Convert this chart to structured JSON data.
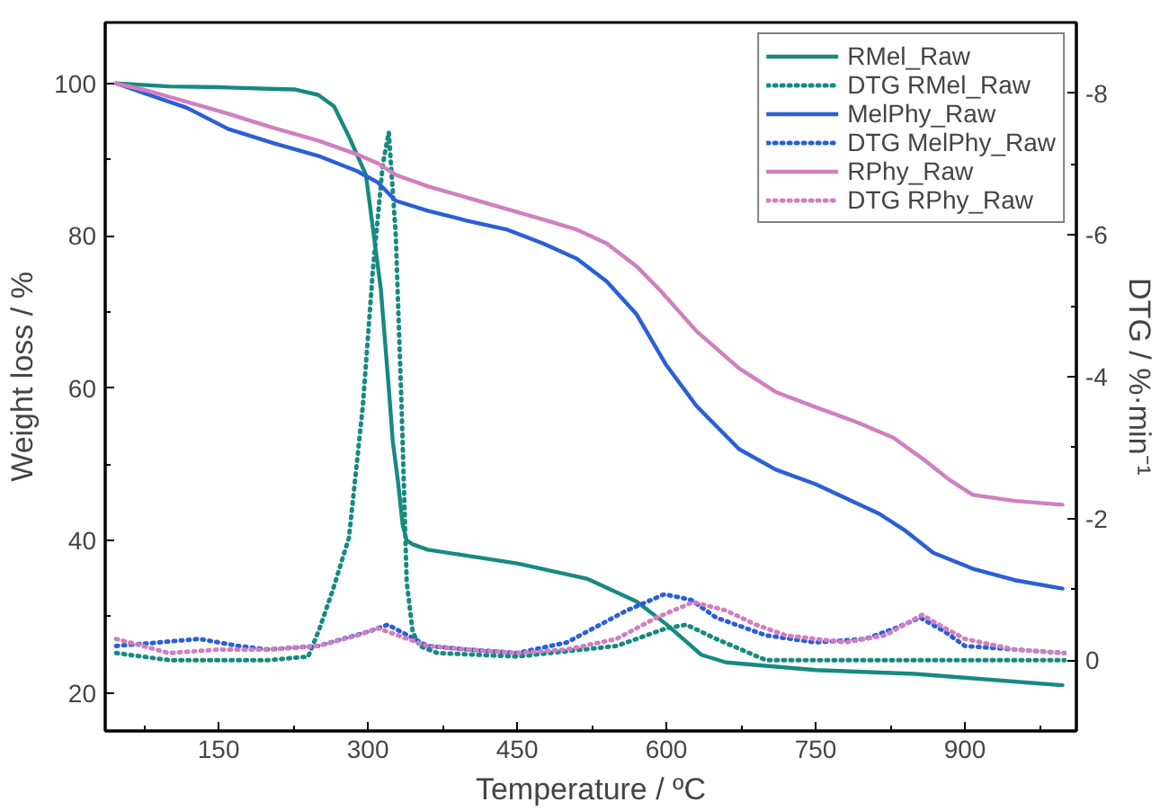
{
  "chart_data": {
    "type": "line",
    "xlabel": "Temperature / ºC",
    "ylabel": "Weight loss / %",
    "y2label": "DTG / %·min⁻¹",
    "xlim": [
      36,
      1012
    ],
    "ylim": [
      15,
      108
    ],
    "y2lim": [
      1,
      -9
    ],
    "xticks": [
      {
        "value": 75,
        "label": null
      },
      150,
      {
        "value": 225,
        "label": null
      },
      300,
      {
        "value": 375,
        "label": null
      },
      450,
      {
        "value": 525,
        "label": null
      },
      600,
      {
        "value": 675,
        "label": null
      },
      750,
      {
        "value": 825,
        "label": null
      },
      900,
      {
        "value": 975,
        "label": null
      }
    ],
    "yticks": [
      20,
      {
        "value": 30,
        "label": null
      },
      40,
      {
        "value": 50,
        "label": null
      },
      60,
      {
        "value": 70,
        "label": null
      },
      80,
      {
        "value": 90,
        "label": null
      },
      100
    ],
    "y2ticks": [
      0,
      {
        "value": -1,
        "label": null
      },
      -2,
      {
        "value": -3,
        "label": null
      },
      -4,
      {
        "value": -5,
        "label": null
      },
      -6,
      {
        "value": -7,
        "label": null
      },
      -8
    ],
    "grid": false,
    "legend": "top right",
    "marker": "none",
    "series": [
      {
        "name": "RMel_Raw",
        "color": "#178a80",
        "line_style": "solid",
        "x": [
          47,
          100,
          150,
          200,
          227,
          250,
          266,
          281,
          298,
          313,
          321,
          325,
          330,
          335,
          339,
          345,
          360,
          400,
          450,
          520,
          570,
          600,
          635,
          660,
          750,
          850,
          998
        ],
        "values": [
          100,
          99.6,
          99.5,
          99.3,
          99.2,
          98.5,
          97,
          93,
          88,
          73,
          60,
          53,
          48,
          42,
          40,
          39.5,
          38.8,
          38,
          37,
          35,
          32,
          29,
          25,
          24,
          23,
          22.5,
          21
        ]
      },
      {
        "name": "DTG RMel_Raw",
        "color": "#178a80",
        "line_style": "dotted",
        "axis": "y2",
        "x": [
          47,
          100,
          150,
          200,
          240,
          251,
          265,
          281,
          295,
          305,
          315,
          321,
          328,
          334,
          339,
          345,
          352,
          370,
          450,
          550,
          600,
          620,
          650,
          700,
          800,
          900,
          1000
        ],
        "values": [
          -0.1,
          0,
          0,
          0,
          -0.05,
          -0.43,
          -1,
          -1.73,
          -3.6,
          -5.5,
          -7,
          -7.45,
          -6,
          -3.5,
          -1.1,
          -0.4,
          -0.2,
          -0.1,
          -0.05,
          -0.2,
          -0.45,
          -0.5,
          -0.3,
          0,
          0,
          0,
          0
        ]
      },
      {
        "name": "MelPhy_Raw",
        "color": "#2a5fd6",
        "line_style": "solid",
        "x": [
          47,
          80,
          118,
          160,
          204,
          250,
          289,
          310,
          328,
          360,
          399,
          440,
          476,
          510,
          540,
          570,
          600,
          630,
          673,
          710,
          750,
          814,
          840,
          868,
          908,
          950,
          998
        ],
        "values": [
          100,
          98.5,
          96.8,
          94,
          92.2,
          90.5,
          88.5,
          87,
          84.6,
          83.3,
          82,
          80.8,
          79,
          77,
          74,
          69.7,
          63,
          57.7,
          52,
          49.3,
          47.4,
          43.5,
          41.3,
          38.4,
          36.3,
          34.8,
          33.7
        ]
      },
      {
        "name": "DTG MelPhy_Raw",
        "color": "#2a5fd6",
        "line_style": "dotted",
        "axis": "y2",
        "x": [
          47,
          90,
          130,
          170,
          200,
          250,
          300,
          320,
          340,
          360,
          400,
          450,
          500,
          520,
          560,
          598,
          625,
          650,
          700,
          750,
          800,
          830,
          855,
          880,
          900,
          950,
          1000
        ],
        "values": [
          -0.2,
          -0.25,
          -0.3,
          -0.2,
          -0.15,
          -0.2,
          -0.4,
          -0.5,
          -0.35,
          -0.2,
          -0.15,
          -0.1,
          -0.25,
          -0.4,
          -0.7,
          -0.93,
          -0.85,
          -0.6,
          -0.35,
          -0.25,
          -0.3,
          -0.45,
          -0.6,
          -0.4,
          -0.2,
          -0.15,
          -0.1
        ]
      },
      {
        "name": "RPhy_Raw",
        "color": "#d07fbf",
        "line_style": "solid",
        "x": [
          47,
          80,
          120,
          160,
          204,
          250,
          289,
          310,
          328,
          360,
          400,
          440,
          480,
          510,
          540,
          570,
          594,
          630,
          673,
          710,
          750,
          790,
          828,
          860,
          884,
          908,
          950,
          998
        ],
        "values": [
          100,
          99,
          97.5,
          96,
          94.2,
          92.5,
          90.7,
          89.5,
          88,
          86.5,
          85,
          83.5,
          82,
          80.8,
          79,
          76,
          72.8,
          67.5,
          62.6,
          59.5,
          57.5,
          55.6,
          53.5,
          50.5,
          48,
          46,
          45.2,
          44.7
        ]
      },
      {
        "name": "DTG RPhy_Raw",
        "color": "#d07fbf",
        "line_style": "dotted",
        "axis": "y2",
        "x": [
          47,
          100,
          150,
          200,
          250,
          290,
          310,
          330,
          360,
          400,
          450,
          500,
          550,
          590,
          627,
          660,
          690,
          720,
          780,
          820,
          857,
          880,
          900,
          950,
          1000
        ],
        "values": [
          -0.3,
          -0.1,
          -0.15,
          -0.15,
          -0.2,
          -0.35,
          -0.45,
          -0.35,
          -0.2,
          -0.15,
          -0.1,
          -0.15,
          -0.3,
          -0.6,
          -0.82,
          -0.7,
          -0.5,
          -0.35,
          -0.25,
          -0.35,
          -0.64,
          -0.45,
          -0.3,
          -0.15,
          -0.1
        ]
      }
    ]
  }
}
